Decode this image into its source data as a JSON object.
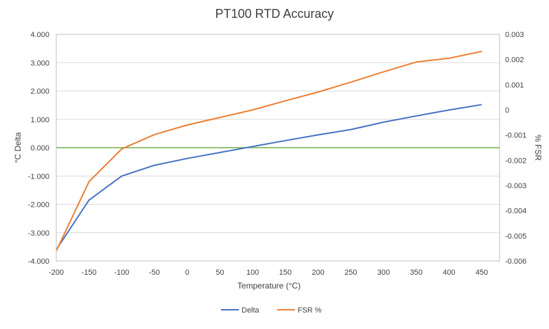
{
  "chart_data": {
    "type": "line",
    "title": "PT100 RTD Accuracy",
    "xlabel": "Temperature (°C)",
    "ylabel": "°C Delta",
    "y2label": "% FSR",
    "x": [
      -200,
      -150,
      -100,
      -50,
      0,
      50,
      100,
      150,
      200,
      250,
      300,
      350,
      400,
      450
    ],
    "xticks": [
      "-200",
      "-150",
      "-100",
      "-50",
      "0",
      "50",
      "100",
      "150",
      "200",
      "250",
      "300",
      "350",
      "400",
      "450"
    ],
    "ylim": [
      -4,
      4
    ],
    "yticks": [
      "-4.000",
      "-3.000",
      "-2.000",
      "-1.000",
      "0.000",
      "1.000",
      "2.000",
      "3.000",
      "4.000"
    ],
    "y2lim": [
      -0.006,
      0.003
    ],
    "y2ticks": [
      "-0.006",
      "-0.005",
      "-0.004",
      "-0.003",
      "-0.002",
      "-0.001",
      "0",
      "0.001",
      "0.002",
      "0.003"
    ],
    "grid": "horizontal",
    "legend_position": "bottom",
    "series": [
      {
        "name": "Delta",
        "axis": "left",
        "color": "#4472c4",
        "values": [
          -3.6,
          -1.85,
          -1.0,
          -0.62,
          -0.38,
          -0.17,
          0.04,
          0.25,
          0.45,
          0.64,
          0.9,
          1.12,
          1.33,
          1.52
        ]
      },
      {
        "name": "FSR %",
        "axis": "right",
        "color": "#ed7d31",
        "values": [
          -0.0056,
          -0.00285,
          -0.00155,
          -0.00098,
          -0.0006,
          -0.0003,
          0.0,
          0.00036,
          0.00071,
          0.0011,
          0.00151,
          0.0019,
          0.00205,
          0.00232
        ]
      }
    ],
    "reference_line": {
      "axis": "left",
      "value": 0,
      "color": "#70ad47"
    }
  }
}
